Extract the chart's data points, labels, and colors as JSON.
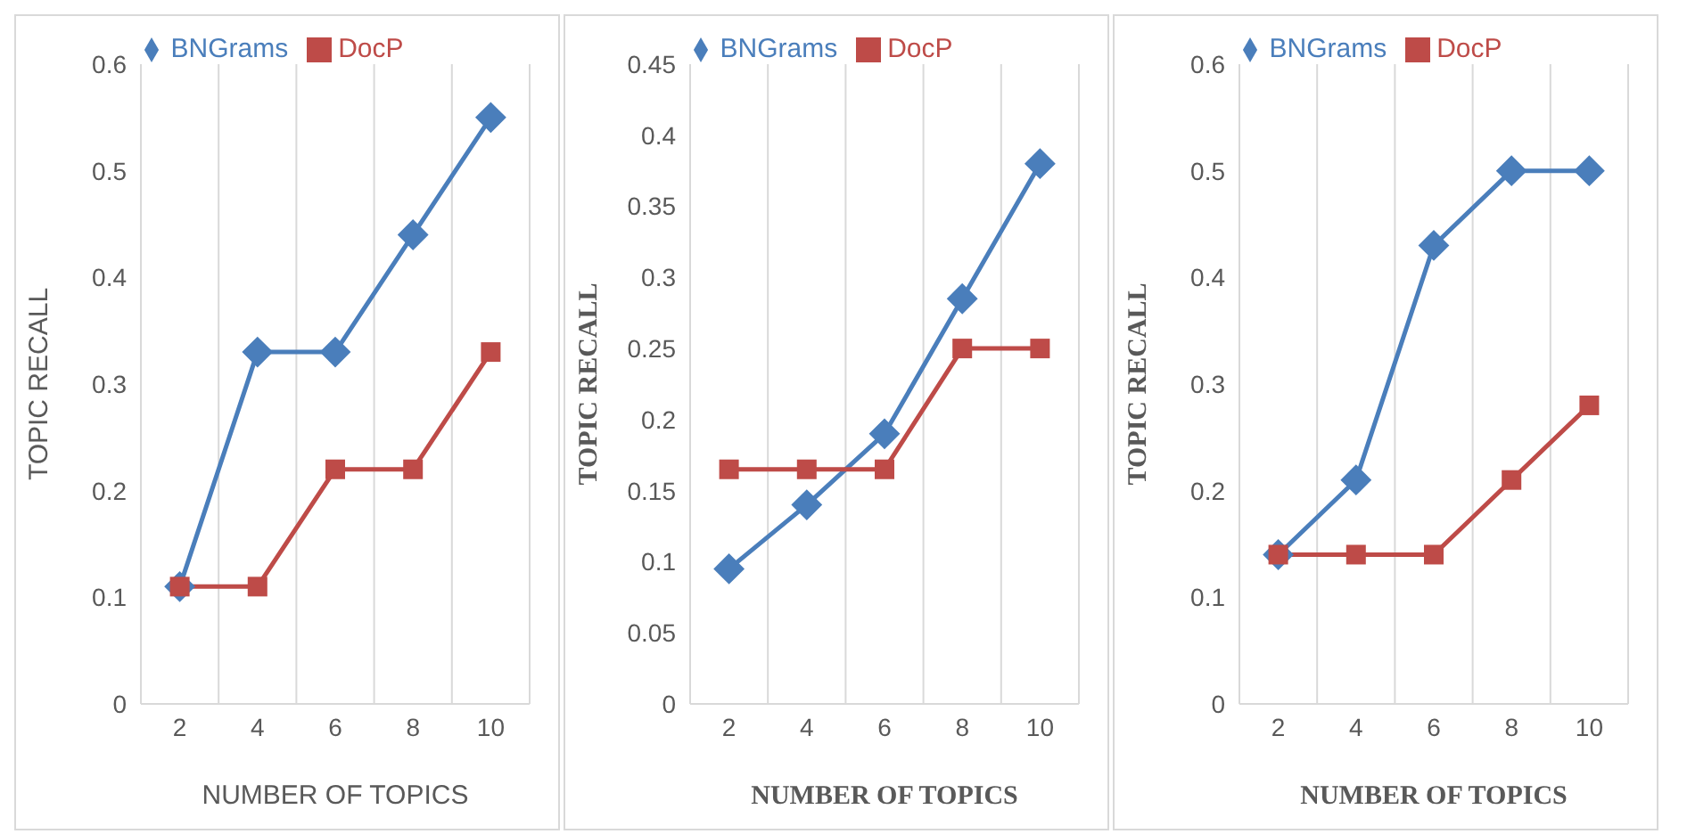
{
  "chart_data": [
    {
      "type": "line",
      "xlabel": "NUMBER OF TOPICS",
      "ylabel": "TOPIC RECALL",
      "categories": [
        "2",
        "4",
        "6",
        "8",
        "10"
      ],
      "series": [
        {
          "name": "BNGrams",
          "color": "#4a7ebb",
          "marker": "diamond",
          "values": [
            0.11,
            0.33,
            0.33,
            0.44,
            0.55
          ]
        },
        {
          "name": "DocP",
          "color": "#be4b48",
          "marker": "square",
          "values": [
            0.11,
            0.11,
            0.22,
            0.22,
            0.33
          ]
        }
      ],
      "ylim": [
        0,
        0.6
      ],
      "yticks": [
        0,
        0.1,
        0.2,
        0.3,
        0.4,
        0.5,
        0.6
      ],
      "grid": "x",
      "legend": "top"
    },
    {
      "type": "line",
      "xlabel": "NUMBER OF TOPICS",
      "ylabel": "TOPIC RECALL",
      "categories": [
        "2",
        "4",
        "6",
        "8",
        "10"
      ],
      "series": [
        {
          "name": "BNGrams",
          "color": "#4a7ebb",
          "marker": "diamond",
          "values": [
            0.095,
            0.14,
            0.19,
            0.285,
            0.38
          ]
        },
        {
          "name": "DocP",
          "color": "#be4b48",
          "marker": "square",
          "values": [
            0.165,
            0.165,
            0.165,
            0.25,
            0.25
          ]
        }
      ],
      "ylim": [
        0,
        0.45
      ],
      "yticks": [
        0,
        0.05,
        0.1,
        0.15,
        0.2,
        0.25,
        0.3,
        0.35,
        0.4,
        0.45
      ],
      "grid": "x",
      "legend": "top"
    },
    {
      "type": "line",
      "xlabel": "NUMBER OF TOPICS",
      "ylabel": "TOPIC RECALL",
      "categories": [
        "2",
        "4",
        "6",
        "8",
        "10"
      ],
      "series": [
        {
          "name": "BNGrams",
          "color": "#4a7ebb",
          "marker": "diamond",
          "values": [
            0.14,
            0.21,
            0.43,
            0.5,
            0.5
          ]
        },
        {
          "name": "DocP",
          "color": "#be4b48",
          "marker": "square",
          "values": [
            0.14,
            0.14,
            0.14,
            0.21,
            0.28
          ]
        }
      ],
      "ylim": [
        0,
        0.6
      ],
      "yticks": [
        0,
        0.1,
        0.2,
        0.3,
        0.4,
        0.5,
        0.6
      ],
      "grid": "x",
      "legend": "top"
    }
  ]
}
